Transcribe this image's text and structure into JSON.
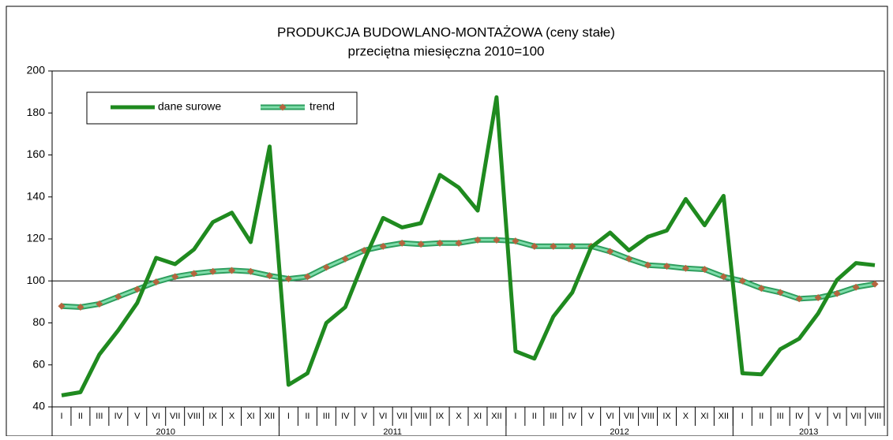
{
  "chart_data": {
    "type": "line",
    "title": "PRODUKCJA BUDOWLANO-MONTAŻOWA (ceny stałe)",
    "subtitle": "przeciętna miesięczna 2010=100",
    "categories": [
      "I",
      "II",
      "III",
      "IV",
      "V",
      "VI",
      "VII",
      "VIII",
      "IX",
      "X",
      "XI",
      "XII",
      "I",
      "II",
      "III",
      "IV",
      "V",
      "VI",
      "VII",
      "VIII",
      "IX",
      "X",
      "XI",
      "XII",
      "I",
      "II",
      "III",
      "IV",
      "V",
      "VI",
      "VII",
      "VIII",
      "IX",
      "X",
      "XI",
      "XII",
      "I",
      "II",
      "III",
      "IV",
      "V",
      "VI",
      "VII",
      "VIII"
    ],
    "category_groups": [
      "2010",
      "2011",
      "2012",
      "2013"
    ],
    "series": [
      {
        "name": "dane surowe",
        "color": "#1f8a1f",
        "values": [
          45.5,
          47,
          65,
          76.5,
          89.5,
          111,
          108,
          115,
          128,
          132.5,
          118.5,
          164,
          50.5,
          56,
          80,
          87.5,
          110,
          130,
          125.5,
          127.5,
          150.5,
          144.5,
          133.5,
          187.5,
          66.5,
          63,
          83,
          94.5,
          116,
          123,
          114.5,
          121,
          124,
          139,
          126.5,
          140.5,
          56,
          55.5,
          67.5,
          72.5,
          84.5,
          100.5,
          108.5,
          107.5
        ]
      },
      {
        "name": "trend",
        "color": "#7fdcaa",
        "outline": "#2e9e5e",
        "marker_color": "#b5653f",
        "values": [
          88,
          87.5,
          89,
          92.5,
          96,
          99.5,
          102,
          103.5,
          104.5,
          105,
          104.5,
          102.5,
          101,
          102,
          106.5,
          110.5,
          114.5,
          116.5,
          118,
          117.5,
          118,
          118,
          119.5,
          119.5,
          119,
          116.5,
          116.5,
          116.5,
          116.5,
          114,
          110.5,
          107.5,
          107,
          106,
          105.5,
          102,
          100,
          96.5,
          94.5,
          91.5,
          92,
          94,
          97,
          98.5
        ]
      }
    ],
    "ylim": [
      40,
      200
    ],
    "yticks": [
      40,
      60,
      80,
      100,
      120,
      140,
      160,
      180,
      200
    ],
    "reference_line": 100,
    "legend": "upper left"
  }
}
